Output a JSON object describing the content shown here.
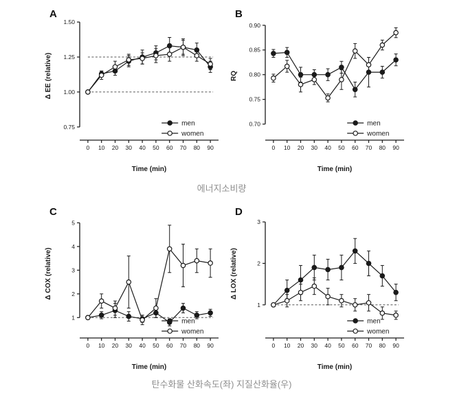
{
  "figure": {
    "captions": {
      "top": "에너지소비량",
      "bottom": "탄수화물 산화속도(좌) 지질산화율(우)"
    }
  },
  "chart_data": [
    {
      "panel": "A",
      "type": "line",
      "ylabel": "Δ EE (relative)",
      "xlabel": "Time (min)",
      "x": [
        0,
        10,
        20,
        30,
        40,
        50,
        60,
        70,
        80,
        90
      ],
      "xticks": [
        0,
        10,
        20,
        30,
        40,
        50,
        60,
        70,
        80,
        90
      ],
      "xlim": [
        -6,
        96
      ],
      "ylim": [
        0.7,
        1.53
      ],
      "yticks": [
        0.75,
        1.0,
        1.25,
        1.5
      ],
      "ytick_labels": [
        "0.75",
        "1.00",
        "1.25",
        "1.50"
      ],
      "dashed_reference_lines": [
        1.0,
        1.25
      ],
      "legend_position": "lower-right",
      "series": [
        {
          "name": "men",
          "marker": "filled-circle",
          "values": [
            1.0,
            1.13,
            1.15,
            1.22,
            1.25,
            1.28,
            1.33,
            1.32,
            1.3,
            1.18
          ],
          "errors": [
            0,
            0.02,
            0.03,
            0.04,
            0.05,
            0.05,
            0.06,
            0.06,
            0.05,
            0.04
          ]
        },
        {
          "name": "women",
          "marker": "open-circle",
          "values": [
            1.0,
            1.12,
            1.18,
            1.23,
            1.24,
            1.26,
            1.27,
            1.32,
            1.26,
            1.2
          ],
          "errors": [
            0,
            0.03,
            0.04,
            0.04,
            0.04,
            0.05,
            0.05,
            0.05,
            0.04,
            0.04
          ]
        }
      ]
    },
    {
      "panel": "B",
      "type": "line",
      "ylabel": "RQ",
      "xlabel": "Time (min)",
      "x": [
        0,
        10,
        20,
        30,
        40,
        50,
        60,
        70,
        80,
        90
      ],
      "xticks": [
        0,
        10,
        20,
        30,
        40,
        50,
        60,
        70,
        80,
        90
      ],
      "xlim": [
        -6,
        96
      ],
      "ylim": [
        0.68,
        0.915
      ],
      "yticks": [
        0.7,
        0.75,
        0.8,
        0.85,
        0.9
      ],
      "ytick_labels": [
        "0.70",
        "0.75",
        "0.80",
        "0.85",
        "0.90"
      ],
      "dashed_reference_lines": [],
      "legend_position": "lower-right",
      "series": [
        {
          "name": "men",
          "marker": "filled-circle",
          "values": [
            0.843,
            0.845,
            0.8,
            0.8,
            0.8,
            0.815,
            0.77,
            0.805,
            0.805,
            0.83
          ],
          "errors": [
            0.008,
            0.01,
            0.015,
            0.01,
            0.012,
            0.012,
            0.015,
            0.03,
            0.012,
            0.012
          ]
        },
        {
          "name": "women",
          "marker": "open-circle",
          "values": [
            0.793,
            0.817,
            0.78,
            0.79,
            0.753,
            0.79,
            0.848,
            0.82,
            0.86,
            0.885
          ],
          "errors": [
            0.008,
            0.012,
            0.015,
            0.01,
            0.008,
            0.02,
            0.015,
            0.015,
            0.01,
            0.01
          ]
        }
      ]
    },
    {
      "panel": "C",
      "type": "line",
      "ylabel": "Δ COX (relative)",
      "xlabel": "Time (min)",
      "x": [
        0,
        10,
        20,
        30,
        40,
        50,
        60,
        70,
        80,
        90
      ],
      "xticks": [
        0,
        10,
        20,
        30,
        40,
        50,
        60,
        70,
        80,
        90
      ],
      "xlim": [
        -6,
        96
      ],
      "ylim": [
        0.4,
        5.3
      ],
      "yticks": [
        1,
        2,
        3,
        4,
        5
      ],
      "ytick_labels": [
        "1",
        "2",
        "3",
        "4",
        "5"
      ],
      "dashed_reference_lines": [
        1.0
      ],
      "legend_position": "lower-right",
      "series": [
        {
          "name": "men",
          "marker": "filled-circle",
          "values": [
            1.0,
            1.1,
            1.3,
            1.05,
            0.95,
            1.2,
            0.8,
            1.4,
            1.1,
            1.2
          ],
          "errors": [
            0,
            0.15,
            0.3,
            0.2,
            0.15,
            0.2,
            0.15,
            0.2,
            0.15,
            0.15
          ]
        },
        {
          "name": "women",
          "marker": "open-circle",
          "values": [
            1.0,
            1.7,
            1.4,
            2.5,
            0.9,
            1.4,
            3.9,
            3.2,
            3.4,
            3.3
          ],
          "errors": [
            0,
            0.3,
            0.3,
            1.1,
            0.2,
            0.4,
            1.0,
            0.9,
            0.5,
            0.6
          ]
        }
      ]
    },
    {
      "panel": "D",
      "type": "line",
      "ylabel": "Δ LOX (relative)",
      "xlabel": "Time (min)",
      "x": [
        0,
        10,
        20,
        30,
        40,
        50,
        60,
        70,
        80,
        90
      ],
      "xticks": [
        0,
        10,
        20,
        30,
        40,
        50,
        60,
        70,
        80,
        90
      ],
      "xlim": [
        -6,
        96
      ],
      "ylim": [
        0.35,
        3.15
      ],
      "yticks": [
        1,
        2,
        3
      ],
      "ytick_labels": [
        "1",
        "2",
        "3"
      ],
      "dashed_reference_lines": [
        1.0
      ],
      "legend_position": "lower-right",
      "series": [
        {
          "name": "men",
          "marker": "filled-circle",
          "values": [
            1.0,
            1.35,
            1.6,
            1.9,
            1.85,
            1.9,
            2.3,
            2.0,
            1.7,
            1.3
          ],
          "errors": [
            0,
            0.25,
            0.35,
            0.3,
            0.25,
            0.3,
            0.3,
            0.3,
            0.25,
            0.2
          ]
        },
        {
          "name": "women",
          "marker": "open-circle",
          "values": [
            1.0,
            1.1,
            1.3,
            1.45,
            1.2,
            1.1,
            1.0,
            1.05,
            0.8,
            0.75
          ],
          "errors": [
            0,
            0.15,
            0.2,
            0.2,
            0.2,
            0.15,
            0.15,
            0.2,
            0.15,
            0.1
          ]
        }
      ]
    }
  ]
}
